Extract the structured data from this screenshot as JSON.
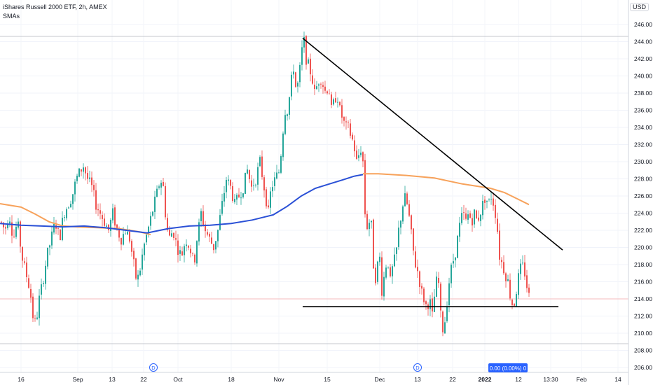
{
  "header": {
    "symbol_line": "iShares Russell 2000 ETF, 2h, AMEX",
    "indicator": "SMAs",
    "currency": "USD"
  },
  "price_badge": "0.00 (0.00%) 0",
  "event_markers": [
    "D",
    "D"
  ],
  "colors": {
    "up": "#26a69a",
    "down": "#ef5350",
    "sma_blue": "#2a50d6",
    "sma_orange": "#f7a25b",
    "trendline": "#000000",
    "badge": "#2962ff"
  },
  "chart_data": {
    "type": "candlestick",
    "ylim": [
      205,
      247
    ],
    "y_ticks": [
      206,
      208,
      210,
      212,
      214,
      216,
      218,
      220,
      222,
      224,
      226,
      228,
      230,
      232,
      234,
      236,
      238,
      240,
      242,
      244,
      246
    ],
    "x_ticks": [
      {
        "label": "16",
        "strong": false
      },
      {
        "label": "Sep",
        "strong": false
      },
      {
        "label": "13",
        "strong": false
      },
      {
        "label": "22",
        "strong": false
      },
      {
        "label": "Oct",
        "strong": false
      },
      {
        "label": "18",
        "strong": false
      },
      {
        "label": "Nov",
        "strong": false
      },
      {
        "label": "15",
        "strong": false
      },
      {
        "label": "Dec",
        "strong": false
      },
      {
        "label": "13",
        "strong": false
      },
      {
        "label": "22",
        "strong": false
      },
      {
        "label": "2022",
        "strong": true
      },
      {
        "label": "12",
        "strong": false
      },
      {
        "label": "13:30",
        "strong": false
      },
      {
        "label": "Feb",
        "strong": false
      },
      {
        "label": "14",
        "strong": false
      }
    ],
    "price_path": [
      [
        0,
        223
      ],
      [
        6,
        222
      ],
      [
        12,
        224
      ],
      [
        18,
        221
      ],
      [
        24,
        223
      ],
      [
        30,
        219
      ],
      [
        36,
        217
      ],
      [
        42,
        215
      ],
      [
        46,
        212
      ],
      [
        50,
        211
      ],
      [
        55,
        214
      ],
      [
        60,
        216
      ],
      [
        66,
        219
      ],
      [
        72,
        221
      ],
      [
        78,
        223
      ],
      [
        84,
        221
      ],
      [
        90,
        224
      ],
      [
        96,
        225
      ],
      [
        102,
        226
      ],
      [
        108,
        228
      ],
      [
        114,
        229
      ],
      [
        118,
        229.5
      ],
      [
        124,
        228
      ],
      [
        130,
        227
      ],
      [
        136,
        225
      ],
      [
        142,
        224
      ],
      [
        148,
        223
      ],
      [
        154,
        222
      ],
      [
        160,
        224
      ],
      [
        166,
        222
      ],
      [
        172,
        221
      ],
      [
        178,
        222
      ],
      [
        184,
        221
      ],
      [
        190,
        218
      ],
      [
        194,
        216
      ],
      [
        198,
        217
      ],
      [
        204,
        220
      ],
      [
        210,
        222
      ],
      [
        216,
        224
      ],
      [
        222,
        226
      ],
      [
        228,
        228
      ],
      [
        232,
        227
      ],
      [
        236,
        223
      ],
      [
        240,
        221
      ],
      [
        246,
        222
      ],
      [
        252,
        220
      ],
      [
        258,
        219
      ],
      [
        264,
        221
      ],
      [
        270,
        220
      ],
      [
        276,
        218
      ],
      [
        280,
        221
      ],
      [
        286,
        224
      ],
      [
        292,
        222
      ],
      [
        298,
        221
      ],
      [
        304,
        220
      ],
      [
        310,
        222
      ],
      [
        316,
        225
      ],
      [
        322,
        228
      ],
      [
        328,
        227
      ],
      [
        334,
        225
      ],
      [
        340,
        226
      ],
      [
        346,
        227
      ],
      [
        352,
        229
      ],
      [
        358,
        227
      ],
      [
        364,
        228
      ],
      [
        370,
        230
      ],
      [
        376,
        227
      ],
      [
        382,
        224
      ],
      [
        386,
        227
      ],
      [
        392,
        228
      ],
      [
        398,
        229
      ],
      [
        402,
        233
      ],
      [
        406,
        236
      ],
      [
        410,
        236
      ],
      [
        414,
        239
      ],
      [
        418,
        241
      ],
      [
        422,
        238
      ],
      [
        426,
        240
      ],
      [
        430,
        243
      ],
      [
        433,
        244
      ],
      [
        436,
        242
      ],
      [
        440,
        241
      ],
      [
        444,
        240
      ],
      [
        448,
        238
      ],
      [
        452,
        239
      ],
      [
        456,
        240
      ],
      [
        460,
        239
      ],
      [
        464,
        238
      ],
      [
        468,
        239
      ],
      [
        472,
        236
      ],
      [
        476,
        237
      ],
      [
        480,
        238
      ],
      [
        484,
        236
      ],
      [
        488,
        235
      ],
      [
        492,
        234
      ],
      [
        496,
        234
      ],
      [
        500,
        233
      ],
      [
        504,
        232
      ],
      [
        508,
        230
      ],
      [
        512,
        231
      ],
      [
        516,
        232
      ],
      [
        520,
        224
      ],
      [
        524,
        222
      ],
      [
        528,
        224
      ],
      [
        532,
        218
      ],
      [
        536,
        216
      ],
      [
        540,
        220
      ],
      [
        544,
        215
      ],
      [
        548,
        217
      ],
      [
        552,
        219
      ],
      [
        556,
        216
      ],
      [
        560,
        218
      ],
      [
        564,
        219
      ],
      [
        568,
        222
      ],
      [
        572,
        224
      ],
      [
        576,
        226
      ],
      [
        580,
        225
      ],
      [
        584,
        223
      ],
      [
        588,
        220
      ],
      [
        592,
        218
      ],
      [
        596,
        217
      ],
      [
        600,
        215
      ],
      [
        604,
        214
      ],
      [
        608,
        213
      ],
      [
        612,
        214
      ],
      [
        616,
        212
      ],
      [
        620,
        215
      ],
      [
        624,
        217
      ],
      [
        628,
        212
      ],
      [
        632,
        210
      ],
      [
        636,
        213
      ],
      [
        640,
        216
      ],
      [
        644,
        218
      ],
      [
        648,
        219
      ],
      [
        652,
        221
      ],
      [
        656,
        223
      ],
      [
        660,
        224
      ],
      [
        664,
        223
      ],
      [
        668,
        224
      ],
      [
        672,
        223
      ],
      [
        676,
        224
      ],
      [
        680,
        223
      ],
      [
        684,
        224
      ],
      [
        688,
        225
      ],
      [
        692,
        226
      ],
      [
        696,
        225
      ],
      [
        700,
        226
      ],
      [
        704,
        225
      ],
      [
        708,
        223
      ],
      [
        712,
        219
      ],
      [
        716,
        218
      ],
      [
        720,
        217
      ],
      [
        724,
        216
      ],
      [
        728,
        214
      ],
      [
        732,
        213
      ],
      [
        736,
        215
      ],
      [
        740,
        217
      ],
      [
        744,
        218
      ],
      [
        748,
        217
      ],
      [
        752,
        215
      ],
      [
        755,
        214
      ]
    ],
    "sma_blue": [
      [
        0,
        222.8
      ],
      [
        30,
        222.6
      ],
      [
        60,
        222.5
      ],
      [
        90,
        222.4
      ],
      [
        120,
        222.5
      ],
      [
        150,
        222.3
      ],
      [
        180,
        222.0
      ],
      [
        210,
        221.7
      ],
      [
        240,
        222.2
      ],
      [
        270,
        222.5
      ],
      [
        300,
        222.6
      ],
      [
        330,
        222.8
      ],
      [
        360,
        223.2
      ],
      [
        390,
        223.8
      ],
      [
        410,
        224.8
      ],
      [
        430,
        226.0
      ],
      [
        450,
        226.9
      ],
      [
        470,
        227.4
      ],
      [
        490,
        227.9
      ],
      [
        505,
        228.3
      ],
      [
        518,
        228.5
      ]
    ],
    "sma_orange": [
      [
        0,
        225.1
      ],
      [
        30,
        224.7
      ],
      [
        50,
        223.9
      ],
      [
        70,
        223.0
      ],
      [
        90,
        222.5
      ],
      [
        110,
        222.4
      ],
      [
        140,
        222.3
      ],
      [
        170,
        222.2
      ],
      [
        200,
        221.8
      ],
      [
        215,
        221.5
      ],
      [
        518,
        228.6
      ],
      [
        540,
        228.6
      ],
      [
        580,
        228.4
      ],
      [
        620,
        228.1
      ],
      [
        660,
        227.4
      ],
      [
        700,
        226.9
      ],
      [
        720,
        226.4
      ],
      [
        740,
        225.6
      ],
      [
        755,
        225.0
      ]
    ],
    "trendline": {
      "from": {
        "x": 432,
        "y": 244.4
      },
      "to": {
        "x": 803,
        "y": 219.7
      }
    },
    "support_line": {
      "from": {
        "x": 432,
        "y": 213.1
      },
      "to": {
        "x": 797,
        "y": 213.1
      }
    },
    "last_price": 214.0
  }
}
